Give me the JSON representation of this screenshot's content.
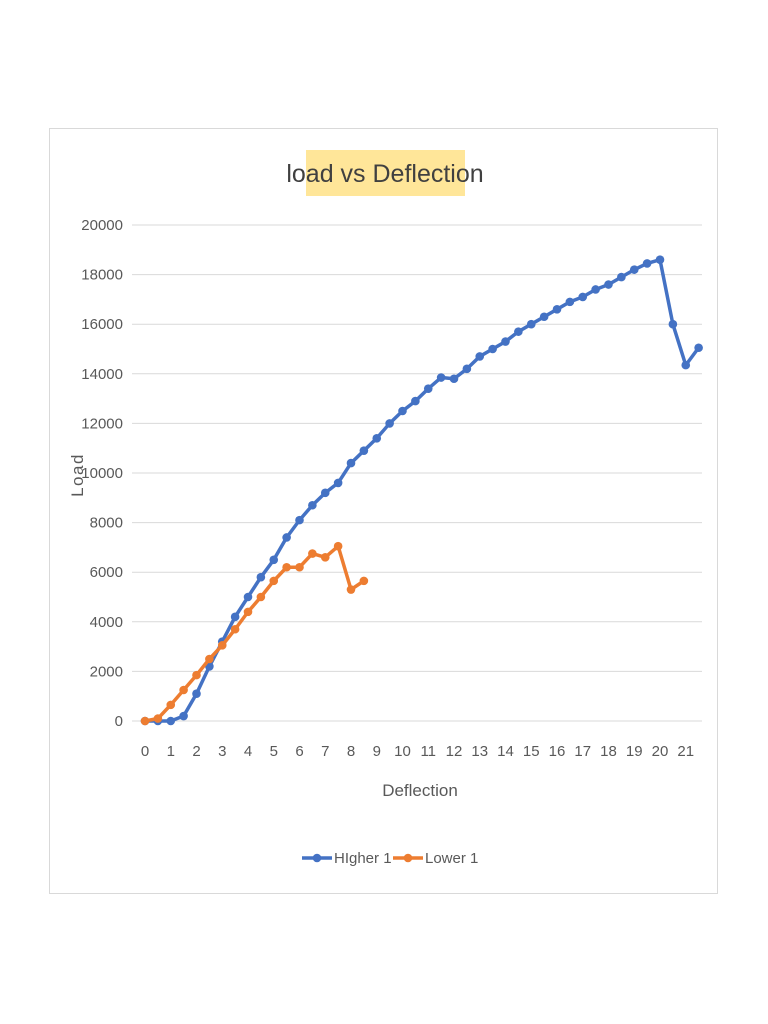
{
  "chart_data": {
    "type": "line",
    "title": "load vs Deflection",
    "xlabel": "Deflection",
    "ylabel": "Load",
    "xlim": [
      0,
      21.5
    ],
    "ylim": [
      0,
      20000
    ],
    "x_ticks": [
      "0",
      "1",
      "2",
      "3",
      "4",
      "5",
      "6",
      "7",
      "8",
      "9",
      "10",
      "11",
      "12",
      "13",
      "14",
      "15",
      "16",
      "17",
      "18",
      "19",
      "20",
      "21"
    ],
    "y_ticks": [
      "0",
      "2000",
      "4000",
      "6000",
      "8000",
      "10000",
      "12000",
      "14000",
      "16000",
      "18000",
      "20000"
    ],
    "grid": true,
    "legend_position": "bottom",
    "series": [
      {
        "name": "HIgher 1",
        "color": "#4472c4",
        "x": [
          0,
          0.5,
          1,
          1.5,
          2,
          2.5,
          3,
          3.5,
          4,
          4.5,
          5,
          5.5,
          6,
          6.5,
          7,
          7.5,
          8,
          8.5,
          9,
          9.5,
          10,
          10.5,
          11,
          11.5,
          12,
          12.5,
          13,
          13.5,
          14,
          14.5,
          15,
          15.5,
          16,
          16.5,
          17,
          17.5,
          18,
          18.5,
          19,
          19.5,
          20,
          20.5,
          21,
          21.5
        ],
        "y": [
          0,
          0,
          0,
          200,
          1100,
          2200,
          3200,
          4200,
          5000,
          5800,
          6500,
          7400,
          8100,
          8700,
          9200,
          9600,
          10400,
          10900,
          11400,
          12000,
          12500,
          12900,
          13400,
          13850,
          13800,
          14200,
          14700,
          15000,
          15300,
          15700,
          16000,
          16300,
          16600,
          16900,
          17100,
          17400,
          17600,
          17900,
          18200,
          18450,
          18600,
          16000,
          14350,
          15050
        ]
      },
      {
        "name": "Lower 1",
        "color": "#ed7d31",
        "x": [
          0,
          0.5,
          1,
          1.5,
          2,
          2.5,
          3,
          3.5,
          4,
          4.5,
          5,
          5.5,
          6,
          6.5,
          7,
          7.5,
          8,
          8.5
        ],
        "y": [
          0,
          100,
          650,
          1250,
          1850,
          2500,
          3050,
          3700,
          4400,
          5000,
          5650,
          6200,
          6200,
          6750,
          6600,
          7050,
          5300,
          5650
        ]
      }
    ]
  }
}
